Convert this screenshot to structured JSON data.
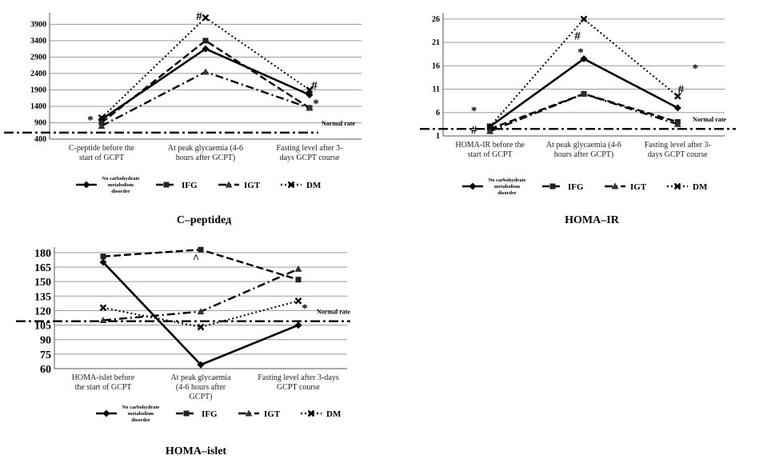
{
  "chart_data": [
    {
      "id": "cpep",
      "type": "line",
      "caption": "C–peptidед",
      "categories": [
        [
          "C-peptide before the",
          "start of GCPT"
        ],
        [
          "At peak glycaemia (4-6",
          "hours after GCPT)"
        ],
        [
          "Fasting level after 3-",
          "days GCPT course"
        ]
      ],
      "yticks": [
        400,
        900,
        1400,
        1900,
        2400,
        2900,
        3400,
        3900
      ],
      "ylim": [
        400,
        4200
      ],
      "normal_rate": 600,
      "normal_label": "Normal rate",
      "series": [
        {
          "name": "No carbohydrate metabolism disorder",
          "style": "solid",
          "values": [
            1000,
            3150,
            1750
          ]
        },
        {
          "name": "IFG",
          "style": "dashed",
          "values": [
            900,
            3400,
            1350
          ]
        },
        {
          "name": "IGT",
          "style": "dashdot",
          "values": [
            800,
            2450,
            1350
          ]
        },
        {
          "name": "DM",
          "style": "dotted",
          "values": [
            1050,
            4100,
            1900
          ]
        }
      ],
      "markers": [
        {
          "text": "*",
          "cat": 0,
          "y": 1000,
          "dx": -14
        },
        {
          "text": "#",
          "cat": 1,
          "y": 4150,
          "dx": -8
        },
        {
          "text": "#",
          "cat": 2,
          "y": 2050,
          "dx": 6
        },
        {
          "text": "*",
          "cat": 2,
          "y": 1500,
          "dx": 8
        }
      ]
    },
    {
      "id": "homair",
      "type": "line",
      "caption": "HOMA–IR",
      "categories": [
        [
          "HOMA-IR before the",
          "start of GCPT"
        ],
        [
          "At peak glycaemia (4-6",
          "hours after GCPT)"
        ],
        [
          "Fasting level after 3-",
          "days GCPT course"
        ]
      ],
      "yticks": [
        1,
        6,
        11,
        16,
        21,
        26
      ],
      "ylim": [
        1,
        27
      ],
      "normal_label": "Normal rate",
      "normal_rate": 2.5,
      "series": [
        {
          "name": "No carbohydrate metabolism disorder",
          "style": "solid",
          "values": [
            3,
            17.5,
            7
          ]
        },
        {
          "name": "IFG",
          "style": "dashed",
          "values": [
            2.5,
            10,
            4
          ]
        },
        {
          "name": "IGT",
          "style": "dashdot",
          "values": [
            2,
            10,
            3.5
          ]
        },
        {
          "name": "DM",
          "style": "dotted",
          "values": [
            3,
            26,
            9.5
          ]
        }
      ],
      "markers": [
        {
          "text": "*",
          "cat": 0,
          "y": 6.5,
          "dx": -20
        },
        {
          "text": "#",
          "cat": 0,
          "y": 2.4,
          "dx": -20
        },
        {
          "text": "#",
          "cat": 1,
          "y": 22.5,
          "dx": -8
        },
        {
          "text": "*",
          "cat": 1,
          "y": 19,
          "dx": -4
        },
        {
          "text": "*",
          "cat": 2,
          "y": 15.5,
          "dx": 22
        },
        {
          "text": "#",
          "cat": 2,
          "y": 11,
          "dx": 4
        }
      ]
    },
    {
      "id": "homaislet",
      "type": "line",
      "caption": "HOMA–islet",
      "categories": [
        [
          "HOMA-islet before",
          "the start of GCPT"
        ],
        [
          "At peak glycaemia",
          "(4-6 hours after",
          "GCPT)"
        ],
        [
          "Fasting level after 3-days",
          "GCPT course"
        ]
      ],
      "yticks": [
        60,
        75,
        90,
        105,
        120,
        135,
        150,
        165,
        180
      ],
      "ylim": [
        60,
        184
      ],
      "normal_label": "Normal rate",
      "normal_rate": 109,
      "series": [
        {
          "name": "No carbohydrate metabolism disorder",
          "style": "solid",
          "values": [
            170,
            64,
            105
          ]
        },
        {
          "name": "IFG",
          "style": "dashed",
          "values": [
            176,
            183,
            152
          ]
        },
        {
          "name": "IGT",
          "style": "dashdot",
          "values": [
            110,
            119,
            163
          ]
        },
        {
          "name": "DM",
          "style": "dotted",
          "values": [
            123,
            103,
            130
          ]
        }
      ],
      "markers": [
        {
          "text": "^",
          "cat": 1,
          "y": 174,
          "dx": -6
        },
        {
          "text": "*",
          "cat": 2,
          "y": 123,
          "dx": 8
        }
      ]
    }
  ],
  "legend": {
    "no_cmd_lines": [
      "No carbohydrate",
      "metabolism",
      "disorder"
    ],
    "ifg": "IFG",
    "igt": "IGT",
    "dm": "DM"
  }
}
